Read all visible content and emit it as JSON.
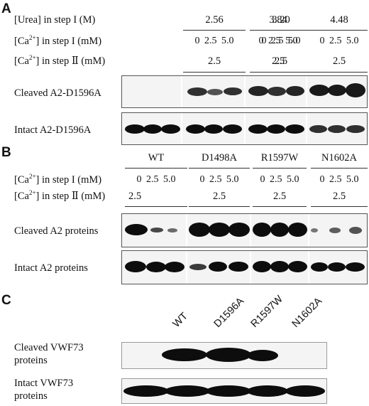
{
  "panels": {
    "A": {
      "letter": "A",
      "rows": {
        "urea": "[Urea] in step I (M)",
        "ca_step1_prefix": "[Ca",
        "ca_step1_sup": "2+",
        "ca_step1_suffix": "] in step I (mM)",
        "ca_step2_prefix": "[Ca",
        "ca_step2_sup": "2+",
        "ca_step2_suffix": "] in step Ⅱ (mM)"
      },
      "groups": [
        {
          "header": "2.56",
          "conc": "0  2.5  5.0",
          "step2": "2.5"
        },
        {
          "header": "3.20",
          "conc": "0  2.5  5.0",
          "step2": "2.5"
        },
        {
          "header": "3.84",
          "conc": "0  2.5  5.0",
          "step2": "2.5"
        },
        {
          "header": "4.48",
          "conc": "0  2.5  5.0",
          "step2": "2.5"
        }
      ],
      "blots": [
        {
          "label": "Cleaved A2-D1596A"
        },
        {
          "label": "Intact A2-D1596A"
        }
      ]
    },
    "B": {
      "letter": "B",
      "rows": {
        "ca_step1_prefix": "[Ca",
        "ca_step1_sup": "2+",
        "ca_step1_suffix": "] in step I (mM)",
        "ca_step2_prefix": "[Ca",
        "ca_step2_sup": "2+",
        "ca_step2_suffix": "] in step Ⅱ (mM)"
      },
      "groups": [
        {
          "header": "WT",
          "conc": "0  2.5  5.0",
          "step2": "2.5"
        },
        {
          "header": "D1498A",
          "conc": "0  2.5  5.0",
          "step2": "2.5"
        },
        {
          "header": "R1597W",
          "conc": "0  2.5  5.0",
          "step2": "2.5"
        },
        {
          "header": "N1602A",
          "conc": "0  2.5  5.0",
          "step2": "2.5"
        }
      ],
      "blots": [
        {
          "label": "Cleaved A2 proteins"
        },
        {
          "label": "Intact A2 proteins"
        }
      ]
    },
    "C": {
      "letter": "C",
      "lanes": [
        "WT",
        "D1596A",
        "R1597W",
        "N1602A"
      ],
      "blots": [
        {
          "label_line1": "Cleaved VWF73",
          "label_line2": "proteins"
        },
        {
          "label_line1": "Intact VWF73",
          "label_line2": "proteins"
        }
      ]
    }
  }
}
